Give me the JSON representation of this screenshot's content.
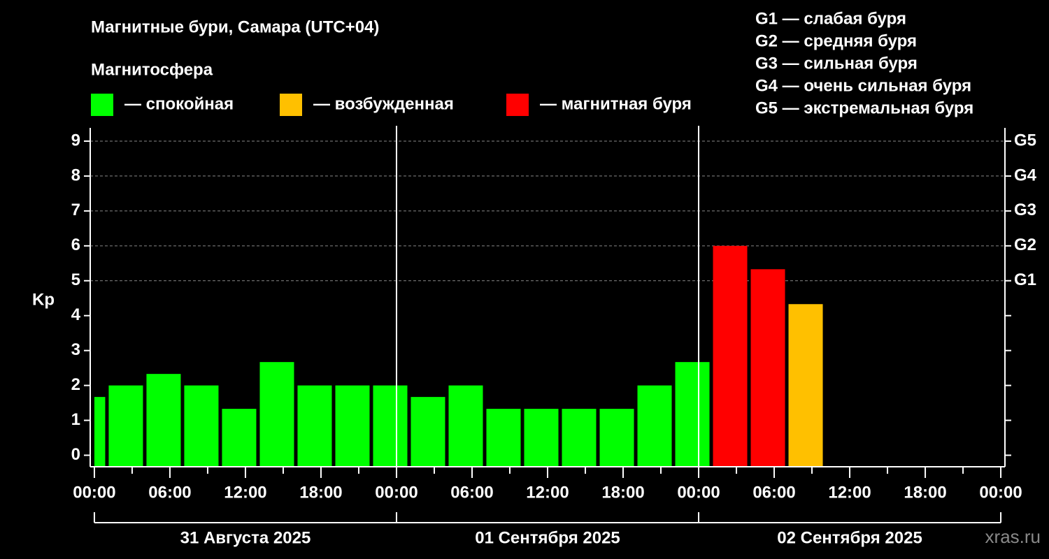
{
  "chart_data": {
    "type": "histogram",
    "title": "Магнитные бури, Самара (UTC+04)",
    "subtitle": "Магнитосфера",
    "ylabel": "Kp",
    "watermark": "xras.ru",
    "legend": [
      {
        "label": "— спокойная",
        "color": "#00ff00"
      },
      {
        "label": "— возбужденная",
        "color": "#ffc000"
      },
      {
        "label": "— магнитная буря",
        "color": "#ff0000"
      }
    ],
    "storm_levels": [
      "G1 — слабая буря",
      "G2 — средняя буря",
      "G3 — сильная буря",
      "G4 — очень сильная буря",
      "G5 — экстремальная буря"
    ],
    "bins": [
      -2,
      1,
      4,
      7,
      10,
      13,
      16,
      19,
      22,
      25,
      28,
      31,
      34,
      37,
      40,
      43,
      46,
      49,
      52,
      55,
      58
    ],
    "values": [
      1.67,
      2,
      2.33,
      2,
      1.33,
      2.67,
      2,
      2,
      2,
      1.67,
      2,
      1.33,
      1.33,
      1.33,
      1.33,
      2,
      2.67,
      6,
      5.33,
      4.33
    ],
    "colors": [
      "#00ff00",
      "#00ff00",
      "#00ff00",
      "#00ff00",
      "#00ff00",
      "#00ff00",
      "#00ff00",
      "#00ff00",
      "#00ff00",
      "#00ff00",
      "#00ff00",
      "#00ff00",
      "#00ff00",
      "#00ff00",
      "#00ff00",
      "#00ff00",
      "#00ff00",
      "#ff0000",
      "#ff0000",
      "#ffc000"
    ],
    "xlim": [
      -0.33,
      72.33
    ],
    "xticks": [
      {
        "value": 0,
        "label": "00:00"
      },
      {
        "value": 6,
        "label": "06:00"
      },
      {
        "value": 12,
        "label": "12:00"
      },
      {
        "value": 18,
        "label": "18:00"
      },
      {
        "value": 24,
        "label": "00:00"
      },
      {
        "value": 30,
        "label": "06:00"
      },
      {
        "value": 36,
        "label": "12:00"
      },
      {
        "value": 42,
        "label": "18:00"
      },
      {
        "value": 48,
        "label": "00:00"
      },
      {
        "value": 54,
        "label": "06:00"
      },
      {
        "value": 60,
        "label": "12:00"
      },
      {
        "value": 66,
        "label": "18:00"
      },
      {
        "value": 72,
        "label": "00:00"
      }
    ],
    "xminorticks": [
      3,
      9,
      15,
      21,
      27,
      33,
      39,
      45,
      51,
      57,
      63,
      69
    ],
    "day_ticks": [
      0,
      24,
      48,
      72
    ],
    "day_labels": [
      "31 Августа 2025",
      "01 Сентября 2025",
      "02 Сентября 2025"
    ],
    "ylim": [
      -0.33,
      9.38
    ],
    "yticks": [
      0,
      1,
      2,
      3,
      4,
      5,
      6,
      7,
      8,
      9
    ],
    "y2lim": [
      -0.33,
      9.38
    ],
    "y2ticks": [
      {
        "value": 5,
        "label": "G1"
      },
      {
        "value": 6,
        "label": "G2"
      },
      {
        "value": 7,
        "label": "G3"
      },
      {
        "value": 8,
        "label": "G4"
      },
      {
        "value": 9,
        "label": "G5"
      }
    ],
    "grid": true
  }
}
